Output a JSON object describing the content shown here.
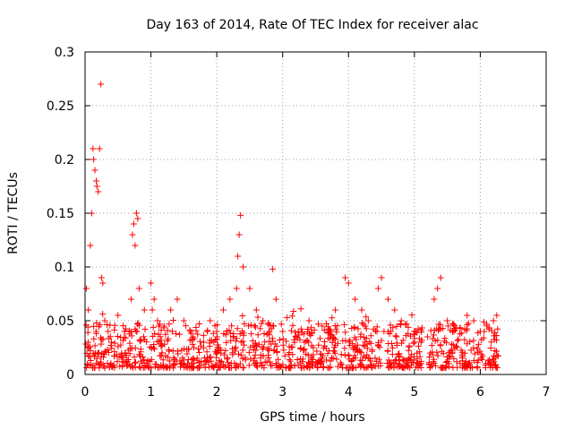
{
  "chart_data": {
    "type": "scatter",
    "title": "Day 163 of 2014, Rate Of TEC Index for receiver alac",
    "xlabel": "GPS time / hours",
    "ylabel": "ROTI / TECUs",
    "xlim": [
      0,
      7
    ],
    "ylim": [
      0,
      0.3
    ],
    "grid": true,
    "legend": "none",
    "marker": "plus",
    "color": "#ff0000",
    "x_ticks": [
      0,
      1,
      2,
      3,
      4,
      5,
      6,
      7
    ],
    "x_tick_labels": [
      "0",
      "1",
      "2",
      "3",
      "4",
      "5",
      "6",
      "7"
    ],
    "y_ticks": [
      0,
      0.05,
      0.1,
      0.15,
      0.2,
      0.25,
      0.3
    ],
    "y_tick_labels": [
      "0",
      "0.05",
      "0.1",
      "0.15",
      "0.2",
      "0.25",
      "0.3"
    ],
    "series": [
      {
        "name": "ROTI",
        "x": [
          0.02,
          0.05,
          0.08,
          0.1,
          0.12,
          0.13,
          0.15,
          0.17,
          0.18,
          0.2,
          0.22,
          0.24,
          0.25,
          0.27,
          0.3,
          0.35,
          0.4,
          0.5,
          0.6,
          0.7,
          0.72,
          0.74,
          0.76,
          0.78,
          0.8,
          0.82,
          0.9,
          1.0,
          1.05,
          1.1,
          1.2,
          1.3,
          1.4,
          1.5,
          1.6,
          1.8,
          1.9,
          2.0,
          2.1,
          2.2,
          2.3,
          2.32,
          2.34,
          2.36,
          2.4,
          2.5,
          2.6,
          2.7,
          2.8,
          2.85,
          2.9,
          3.0,
          3.2,
          3.4,
          3.6,
          3.8,
          3.95,
          4.0,
          4.1,
          4.2,
          4.3,
          4.45,
          4.5,
          4.6,
          4.7,
          4.8,
          5.0,
          5.1,
          5.2,
          5.3,
          5.35,
          5.4,
          5.5,
          5.6,
          5.8,
          5.9,
          6.0,
          6.1,
          6.2,
          6.25
        ],
        "y": [
          0.08,
          0.06,
          0.12,
          0.15,
          0.21,
          0.2,
          0.19,
          0.18,
          0.175,
          0.17,
          0.21,
          0.27,
          0.09,
          0.085,
          0.05,
          0.04,
          0.03,
          0.055,
          0.04,
          0.07,
          0.13,
          0.14,
          0.12,
          0.15,
          0.145,
          0.08,
          0.06,
          0.085,
          0.07,
          0.05,
          0.045,
          0.06,
          0.07,
          0.05,
          0.04,
          0.03,
          0.05,
          0.04,
          0.06,
          0.07,
          0.08,
          0.11,
          0.13,
          0.148,
          0.1,
          0.08,
          0.06,
          0.05,
          0.04,
          0.098,
          0.07,
          0.04,
          0.035,
          0.05,
          0.045,
          0.06,
          0.09,
          0.085,
          0.07,
          0.06,
          0.05,
          0.08,
          0.09,
          0.07,
          0.06,
          0.05,
          0.04,
          0.03,
          0.035,
          0.07,
          0.08,
          0.09,
          0.05,
          0.04,
          0.055,
          0.05,
          0.04,
          0.045,
          0.05,
          0.055
        ]
      }
    ]
  }
}
